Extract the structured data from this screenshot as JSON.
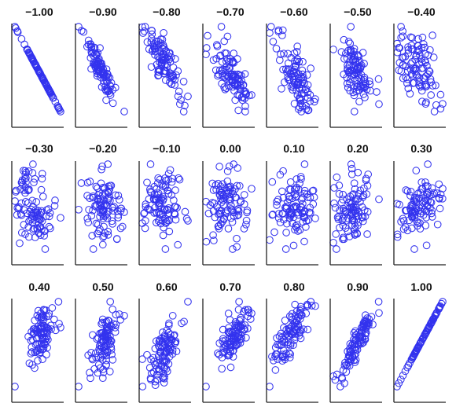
{
  "chart_data": {
    "type": "scatter",
    "layout": {
      "rows": 3,
      "cols": 7
    },
    "marker": {
      "shape": "circle",
      "filled": false
    },
    "colors": {
      "marker": "#3333ee",
      "axes": "#222222",
      "background": "#ffffff"
    },
    "axes": {
      "ticks": false,
      "tick_labels": false,
      "grid": false,
      "spines": [
        "left",
        "bottom"
      ]
    },
    "points_per_panel": 100,
    "panels": [
      {
        "title": "−1.00",
        "correlation": -1.0
      },
      {
        "title": "−0.90",
        "correlation": -0.9
      },
      {
        "title": "−0.80",
        "correlation": -0.8
      },
      {
        "title": "−0.70",
        "correlation": -0.7
      },
      {
        "title": "−0.60",
        "correlation": -0.6
      },
      {
        "title": "−0.50",
        "correlation": -0.5
      },
      {
        "title": "−0.40",
        "correlation": -0.4
      },
      {
        "title": "−0.30",
        "correlation": -0.3
      },
      {
        "title": "−0.20",
        "correlation": -0.2
      },
      {
        "title": "−0.10",
        "correlation": -0.1
      },
      {
        "title": "0.00",
        "correlation": 0.0
      },
      {
        "title": "0.10",
        "correlation": 0.1
      },
      {
        "title": "0.20",
        "correlation": 0.2
      },
      {
        "title": "0.30",
        "correlation": 0.3
      },
      {
        "title": "0.40",
        "correlation": 0.4
      },
      {
        "title": "0.50",
        "correlation": 0.5
      },
      {
        "title": "0.60",
        "correlation": 0.6
      },
      {
        "title": "0.70",
        "correlation": 0.7
      },
      {
        "title": "0.80",
        "correlation": 0.8
      },
      {
        "title": "0.90",
        "correlation": 0.9
      },
      {
        "title": "1.00",
        "correlation": 1.0
      }
    ]
  }
}
